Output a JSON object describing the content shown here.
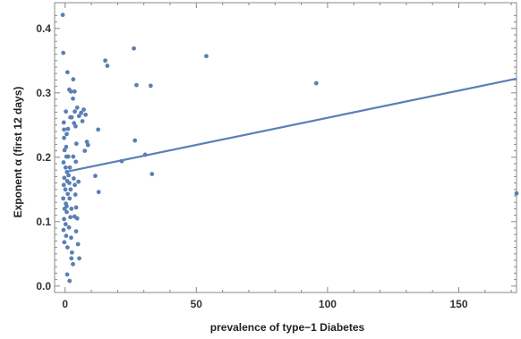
{
  "chart_data": {
    "type": "scatter",
    "title": "",
    "xlabel": "prevalence of type−1 Diabetes",
    "ylabel": "Exponent α (first 12 days)",
    "xlim": [
      -4,
      172
    ],
    "ylim": [
      -0.01,
      0.44
    ],
    "x_ticks": [
      0,
      50,
      100,
      150
    ],
    "y_ticks": [
      0.0,
      0.1,
      0.2,
      0.3,
      0.4
    ],
    "x_tick_labels": [
      "0",
      "50",
      "100",
      "150"
    ],
    "y_tick_labels": [
      "0.0",
      "0.1",
      "0.2",
      "0.3",
      "0.4"
    ],
    "grid": false,
    "legend": "none",
    "colors": {
      "points": "#5b7fb5",
      "fit_line": "#5b7fb5",
      "frame": "#888888"
    },
    "fit_line": {
      "x": [
        0,
        172
      ],
      "y": [
        0.177,
        0.322
      ]
    },
    "points": [
      [
        -0.9,
        0.421
      ],
      [
        -0.7,
        0.362
      ],
      [
        -0.5,
        0.254
      ],
      [
        0.3,
        0.271
      ],
      [
        -0.4,
        0.243
      ],
      [
        0.6,
        0.236
      ],
      [
        1.1,
        0.244
      ],
      [
        1.6,
        0.305
      ],
      [
        0.9,
        0.332
      ],
      [
        3.1,
        0.321
      ],
      [
        2.2,
        0.302
      ],
      [
        3.0,
        0.291
      ],
      [
        3.6,
        0.302
      ],
      [
        2.5,
        0.262
      ],
      [
        3.4,
        0.253
      ],
      [
        4.0,
        0.248
      ],
      [
        3.7,
        0.271
      ],
      [
        4.6,
        0.277
      ],
      [
        5.3,
        0.264
      ],
      [
        6.1,
        0.269
      ],
      [
        6.6,
        0.256
      ],
      [
        7.1,
        0.274
      ],
      [
        7.8,
        0.266
      ],
      [
        2.0,
        0.262
      ],
      [
        8.7,
        0.219
      ],
      [
        8.3,
        0.224
      ],
      [
        7.5,
        0.21
      ],
      [
        4.3,
        0.221
      ],
      [
        11.5,
        0.171
      ],
      [
        12.6,
        0.243
      ],
      [
        12.8,
        0.146
      ],
      [
        15.3,
        0.35
      ],
      [
        16.1,
        0.342
      ],
      [
        21.6,
        0.194
      ],
      [
        26.2,
        0.369
      ],
      [
        26.6,
        0.226
      ],
      [
        27.2,
        0.312
      ],
      [
        30.5,
        0.204
      ],
      [
        32.6,
        0.311
      ],
      [
        33.1,
        0.174
      ],
      [
        53.8,
        0.357
      ],
      [
        95.7,
        0.315
      ],
      [
        172.0,
        0.144
      ],
      [
        -0.4,
        0.23
      ],
      [
        0.4,
        0.216
      ],
      [
        -0.2,
        0.211
      ],
      [
        0.5,
        0.201
      ],
      [
        -0.6,
        0.192
      ],
      [
        0.2,
        0.184
      ],
      [
        0.7,
        0.177
      ],
      [
        -0.3,
        0.168
      ],
      [
        1.3,
        0.172
      ],
      [
        0.8,
        0.163
      ],
      [
        -0.5,
        0.157
      ],
      [
        0.1,
        0.15
      ],
      [
        1.0,
        0.143
      ],
      [
        -0.7,
        0.136
      ],
      [
        0.3,
        0.128
      ],
      [
        -0.2,
        0.12
      ],
      [
        0.6,
        0.115
      ],
      [
        -0.4,
        0.104
      ],
      [
        0.2,
        0.096
      ],
      [
        -0.6,
        0.087
      ],
      [
        0.4,
        0.078
      ],
      [
        -0.3,
        0.068
      ],
      [
        0.9,
        0.06
      ],
      [
        1.8,
        0.184
      ],
      [
        1.6,
        0.16
      ],
      [
        2.1,
        0.15
      ],
      [
        1.7,
        0.136
      ],
      [
        2.4,
        0.12
      ],
      [
        2.0,
        0.107
      ],
      [
        1.5,
        0.091
      ],
      [
        2.3,
        0.075
      ],
      [
        0.8,
        0.018
      ],
      [
        1.7,
        0.008
      ],
      [
        2.4,
        0.043
      ],
      [
        3.3,
        0.167
      ],
      [
        3.7,
        0.157
      ],
      [
        3.9,
        0.142
      ],
      [
        4.2,
        0.122
      ],
      [
        3.6,
        0.108
      ],
      [
        4.6,
        0.105
      ],
      [
        4.2,
        0.085
      ],
      [
        4.9,
        0.065
      ],
      [
        3.0,
        0.034
      ],
      [
        5.4,
        0.043
      ],
      [
        2.6,
        0.052
      ],
      [
        4.1,
        0.193
      ],
      [
        5.1,
        0.162
      ],
      [
        1.2,
        0.201
      ],
      [
        3.1,
        0.201
      ],
      [
        0.6,
        0.124
      ]
    ]
  }
}
